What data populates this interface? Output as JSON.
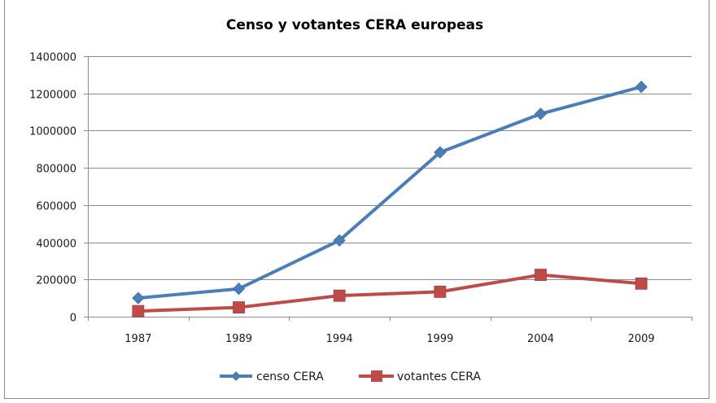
{
  "chart_data": {
    "type": "line",
    "title": "Censo y votantes CERA europeas",
    "xlabel": "",
    "ylabel": "",
    "categories": [
      "1987",
      "1989",
      "1994",
      "1999",
      "2004",
      "2009"
    ],
    "ylim": [
      0,
      1400000
    ],
    "yticks": [
      0,
      200000,
      400000,
      600000,
      800000,
      1000000,
      1200000,
      1400000
    ],
    "ytick_labels": [
      "0",
      "200000",
      "400000",
      "600000",
      "800000",
      "1000000",
      "1200000",
      "1400000"
    ],
    "grid": true,
    "legend_position": "bottom",
    "series": [
      {
        "name": "censo CERA",
        "color": "#4a7ebb",
        "marker": "diamond",
        "values": [
          100000,
          150000,
          410000,
          883000,
          1090000,
          1235000
        ]
      },
      {
        "name": "votantes CERA",
        "color": "#be4b48",
        "marker": "square",
        "values": [
          30000,
          50000,
          113000,
          134000,
          225000,
          178000
        ]
      }
    ]
  }
}
